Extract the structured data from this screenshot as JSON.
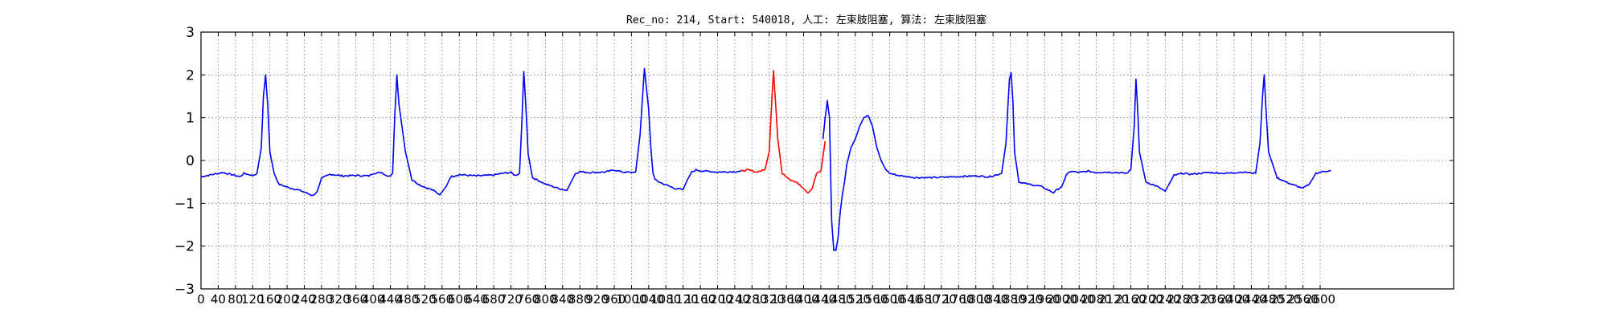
{
  "chart_data": {
    "type": "line",
    "title": "Rec_no: 214, Start: 540018, 人工: 左束肢阻塞, 算法: 左束肢阻塞",
    "xlabel": "",
    "ylabel": "",
    "xlim": [
      0,
      2910
    ],
    "ylim": [
      -3,
      3
    ],
    "grid": true,
    "grid_style": "dotted",
    "x_ticks": [
      0,
      40,
      80,
      120,
      160,
      200,
      240,
      280,
      320,
      360,
      400,
      440,
      480,
      520,
      560,
      600,
      640,
      680,
      720,
      760,
      800,
      840,
      880,
      920,
      960,
      1000,
      1040,
      1080,
      1120,
      1160,
      1200,
      1240,
      1280,
      1320,
      1360,
      1400,
      1440,
      1480,
      1520,
      1560,
      1600,
      1640,
      1680,
      1720,
      1760,
      1800,
      1840,
      1880,
      1920,
      1960,
      2000,
      2040,
      2080,
      2120,
      2160,
      2200,
      2240,
      2280,
      2320,
      2360,
      2400,
      2440,
      2480,
      2520,
      2560,
      2600
    ],
    "x_tick_labels": [
      "0",
      "40",
      "80",
      "120",
      "160",
      "200",
      "240",
      "280",
      "320",
      "360",
      "400",
      "440",
      "480",
      "520",
      "560",
      "600",
      "640",
      "680",
      "720",
      "760",
      "800",
      "840",
      "880",
      "920",
      "960",
      "1000",
      "1040",
      "1080",
      "1120",
      "1160",
      "1200",
      "1240",
      "1280",
      "1320",
      "1360",
      "1400",
      "1440",
      "1480",
      "1520",
      "1560",
      "1600",
      "1640",
      "1680",
      "1720",
      "1760",
      "1800",
      "1840",
      "1880",
      "1920",
      "1960",
      "2000",
      "2040",
      "2080",
      "2120",
      "2160",
      "2200",
      "2240",
      "2280",
      "2320",
      "2360",
      "2400",
      "2440",
      "2480",
      "2520",
      "2560",
      "2600"
    ],
    "y_ticks": [
      3,
      2,
      1,
      0,
      -1,
      -2,
      -3
    ],
    "y_tick_labels": [
      "3",
      "2",
      "1",
      "0",
      "−1",
      "−2",
      "−3"
    ],
    "colors": {
      "normal": "#0000ff",
      "highlight": "#ff0000"
    },
    "series": [
      {
        "color": "blue",
        "x": [
          0,
          50,
          80,
          90,
          100,
          120,
          130,
          140,
          145,
          150,
          155,
          160,
          170,
          180,
          200,
          230,
          260,
          270,
          280,
          300,
          330,
          360,
          390,
          400,
          420,
          430,
          440,
          445,
          450,
          455,
          460,
          475,
          490,
          510,
          540,
          555,
          570,
          580,
          600,
          640,
          680,
          700,
          720,
          730,
          740,
          745,
          750,
          755,
          760,
          770,
          800,
          830,
          850,
          860,
          870,
          880,
          900,
          940,
          960,
          980,
          1000,
          1010,
          1020,
          1030,
          1040,
          1045,
          1050,
          1055,
          1060,
          1075,
          1100,
          1120,
          1130,
          1140,
          1150,
          1160,
          1200,
          1240,
          1255
        ],
        "y": [
          -0.38,
          -0.28,
          -0.35,
          -0.38,
          -0.3,
          -0.35,
          -0.3,
          0.3,
          1.5,
          2.0,
          1.3,
          0.2,
          -0.3,
          -0.55,
          -0.62,
          -0.7,
          -0.82,
          -0.72,
          -0.42,
          -0.32,
          -0.36,
          -0.35,
          -0.36,
          -0.3,
          -0.28,
          -0.35,
          -0.36,
          -0.3,
          1.0,
          2.0,
          1.3,
          0.2,
          -0.45,
          -0.58,
          -0.7,
          -0.8,
          -0.6,
          -0.38,
          -0.33,
          -0.36,
          -0.34,
          -0.3,
          -0.28,
          -0.35,
          -0.3,
          0.8,
          2.08,
          1.2,
          0.15,
          -0.4,
          -0.55,
          -0.65,
          -0.7,
          -0.5,
          -0.3,
          -0.26,
          -0.28,
          -0.27,
          -0.22,
          -0.27,
          -0.28,
          -0.26,
          0.6,
          2.15,
          1.2,
          0.3,
          -0.3,
          -0.45,
          -0.48,
          -0.55,
          -0.65,
          -0.68,
          -0.45,
          -0.27,
          -0.22,
          -0.24,
          -0.27,
          -0.26,
          -0.25
        ]
      },
      {
        "color": "red",
        "x": [
          1255,
          1270,
          1290,
          1310,
          1320,
          1325,
          1330,
          1335,
          1340,
          1350,
          1370,
          1390,
          1400,
          1410,
          1420,
          1430,
          1440,
          1450
        ],
        "y": [
          -0.25,
          -0.22,
          -0.27,
          -0.22,
          0.2,
          1.2,
          2.1,
          1.3,
          0.5,
          -0.3,
          -0.45,
          -0.55,
          -0.65,
          -0.75,
          -0.65,
          -0.3,
          -0.25,
          0.45
        ]
      },
      {
        "color": "blue",
        "x": [
          1445,
          1450,
          1455,
          1460,
          1465,
          1470,
          1475,
          1480,
          1485,
          1490,
          1495,
          1500,
          1510,
          1520,
          1530,
          1540,
          1550,
          1560,
          1570,
          1580,
          1590,
          1600,
          1620,
          1660,
          1700,
          1750,
          1800,
          1830,
          1850,
          1860,
          1870,
          1878,
          1882,
          1886,
          1890,
          1900,
          1920,
          1950,
          1980,
          2000,
          2010,
          2020,
          2040,
          2060,
          2080,
          2100,
          2130,
          2150,
          2160,
          2168,
          2172,
          2176,
          2180,
          2195,
          2220,
          2240,
          2260,
          2280,
          2300,
          2340,
          2380,
          2420,
          2450,
          2460,
          2466,
          2470,
          2474,
          2480,
          2500,
          2520,
          2540,
          2560,
          2575,
          2590,
          2610,
          2625
        ],
        "y": [
          0.5,
          1.0,
          1.4,
          1.0,
          -1.4,
          -2.1,
          -2.1,
          -1.8,
          -1.2,
          -0.8,
          -0.5,
          -0.1,
          0.3,
          0.5,
          0.8,
          1.0,
          1.05,
          0.8,
          0.3,
          0.0,
          -0.2,
          -0.3,
          -0.35,
          -0.4,
          -0.4,
          -0.38,
          -0.36,
          -0.38,
          -0.33,
          -0.3,
          0.4,
          1.9,
          2.05,
          1.4,
          0.2,
          -0.5,
          -0.55,
          -0.6,
          -0.75,
          -0.6,
          -0.35,
          -0.25,
          -0.28,
          -0.25,
          -0.28,
          -0.27,
          -0.28,
          -0.3,
          -0.22,
          0.8,
          1.9,
          1.2,
          0.2,
          -0.5,
          -0.6,
          -0.72,
          -0.35,
          -0.3,
          -0.32,
          -0.28,
          -0.3,
          -0.27,
          -0.3,
          0.4,
          1.5,
          2.0,
          1.2,
          0.2,
          -0.4,
          -0.5,
          -0.58,
          -0.65,
          -0.55,
          -0.3,
          -0.25,
          -0.24
        ]
      }
    ]
  }
}
